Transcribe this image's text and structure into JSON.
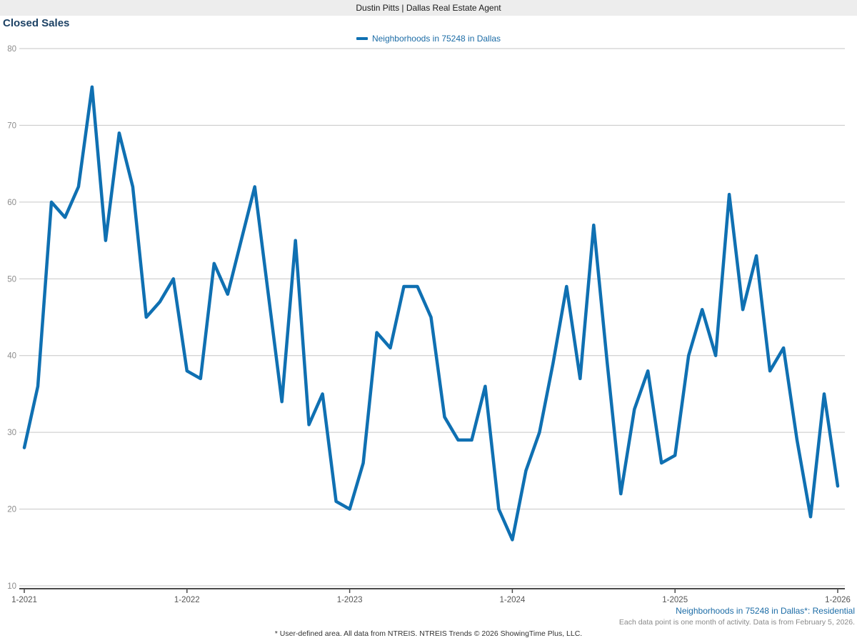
{
  "header": {
    "title": "Dustin Pitts | Dallas Real Estate Agent"
  },
  "chart": {
    "title": "Closed Sales"
  },
  "legend": {
    "label": "Neighborhoods in 75248 in Dallas"
  },
  "footer": {
    "series_note": "Neighborhoods in 75248 in Dallas*: Residential",
    "data_note": "Each data point is one month of activity. Data is from February 5, 2026.",
    "disclaimer": "* User-defined area. All data from NTREIS. NTREIS Trends © 2026 ShowingTime Plus, LLC."
  },
  "colors": {
    "line": "#0f70b2",
    "grid": "#c6c6c6",
    "axis": "#4a4a4a",
    "tick_label": "#8c8c8c",
    "x_label": "#555555",
    "title": "#1d4265",
    "legend_text": "#1c6ca6",
    "header_bg": "#ededed"
  },
  "chart_data": {
    "type": "line",
    "title": "Closed Sales",
    "series_name": "Neighborhoods in 75248 in Dallas",
    "x_unit": "month",
    "start_month": "1-2021",
    "end_month": "1-2026",
    "x_tick_labels": [
      "1-2021",
      "1-2022",
      "1-2023",
      "1-2024",
      "1-2025",
      "1-2026"
    ],
    "x_tick_month_index": [
      0,
      12,
      24,
      36,
      48,
      60
    ],
    "yticks": [
      10,
      20,
      30,
      40,
      50,
      60,
      70,
      80
    ],
    "ylim": [
      10,
      80
    ],
    "grid": "horizontal",
    "legend_position": "top-center",
    "values_by_year": {
      "2021": [
        28,
        36,
        60,
        58,
        62,
        75,
        55,
        69,
        62,
        45,
        47,
        50
      ],
      "2022": [
        38,
        37,
        52,
        48,
        55,
        62,
        48,
        34,
        55,
        31,
        35,
        21
      ],
      "2023": [
        20,
        26,
        43,
        41,
        49,
        49,
        45,
        32,
        29,
        29,
        36,
        20
      ],
      "2024": [
        16,
        25,
        30,
        39,
        49,
        37,
        57,
        39,
        22,
        33,
        38,
        26
      ],
      "2025": [
        27,
        40,
        46,
        40,
        61,
        46,
        53,
        38,
        41,
        29,
        19,
        35
      ],
      "2026": [
        23
      ]
    },
    "values": [
      28,
      36,
      60,
      58,
      62,
      75,
      55,
      69,
      62,
      45,
      47,
      50,
      38,
      37,
      52,
      48,
      55,
      62,
      48,
      34,
      55,
      31,
      35,
      21,
      20,
      26,
      43,
      41,
      49,
      49,
      45,
      32,
      29,
      29,
      36,
      20,
      16,
      25,
      30,
      39,
      49,
      37,
      57,
      39,
      22,
      33,
      38,
      26,
      27,
      40,
      46,
      40,
      61,
      46,
      53,
      38,
      41,
      29,
      19,
      35,
      23
    ]
  }
}
